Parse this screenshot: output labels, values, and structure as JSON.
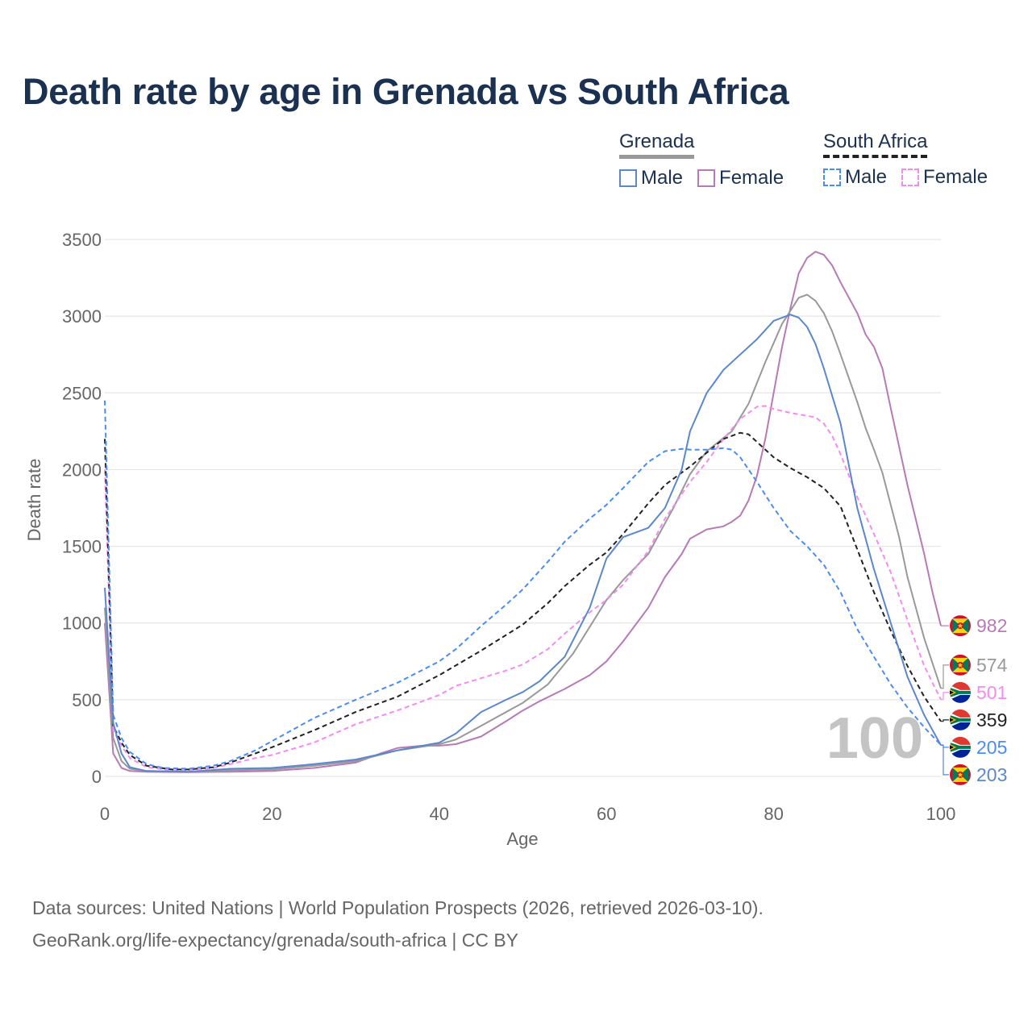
{
  "title": "Death rate by age in Grenada vs South Africa",
  "legend": {
    "groups": [
      {
        "name": "Grenada",
        "line_color": "#999999",
        "line_style": "solid",
        "items": [
          {
            "label": "Male",
            "color": "#5b87cc",
            "style": "solid"
          },
          {
            "label": "Female",
            "color": "#b77ab7",
            "style": "solid"
          }
        ]
      },
      {
        "name": "South Africa",
        "line_color": "#222222",
        "line_style": "dashed",
        "items": [
          {
            "label": "Male",
            "color": "#4a8cf5",
            "style": "dashed"
          },
          {
            "label": "Female",
            "color": "#f58af2",
            "style": "dashed"
          }
        ]
      }
    ]
  },
  "age_indicator": "100",
  "footer": {
    "line1": "Data sources: United Nations | World Population Prospects (2026, retrieved 2026-03-10).",
    "line2": "GeoRank.org/life-expectancy/grenada/south-africa | CC BY"
  },
  "chart_data": {
    "type": "line",
    "title": "Death rate by age in Grenada vs South Africa",
    "xlabel": "Age",
    "ylabel": "Death rate",
    "xlim": [
      0,
      100
    ],
    "ylim": [
      0,
      3500
    ],
    "xticks": [
      "0",
      "20",
      "40",
      "60",
      "80",
      "100"
    ],
    "yticks": [
      "0",
      "500",
      "1000",
      "1500",
      "2000",
      "2500",
      "3000",
      "3500"
    ],
    "grid": true,
    "series": [
      {
        "name": "Grenada Female",
        "country": "Grenada",
        "color": "#b77ab7",
        "dashed": false,
        "end_label": "982",
        "x": [
          0,
          1,
          2,
          3,
          5,
          10,
          15,
          20,
          25,
          30,
          33,
          35,
          38,
          40,
          42,
          45,
          48,
          50,
          52,
          55,
          58,
          60,
          62,
          65,
          67,
          69,
          70,
          72,
          74,
          75,
          76,
          77,
          78,
          79,
          80,
          81,
          82,
          83,
          84,
          85,
          86,
          87,
          88,
          90,
          91,
          92,
          93,
          94,
          96,
          98,
          99,
          100
        ],
        "y": [
          1000,
          150,
          55,
          35,
          30,
          28,
          30,
          35,
          55,
          90,
          150,
          185,
          200,
          200,
          210,
          260,
          360,
          430,
          490,
          570,
          660,
          750,
          880,
          1100,
          1300,
          1450,
          1550,
          1610,
          1630,
          1660,
          1700,
          1800,
          1960,
          2200,
          2500,
          2800,
          3050,
          3280,
          3380,
          3420,
          3400,
          3330,
          3220,
          3020,
          2880,
          2800,
          2660,
          2400,
          1900,
          1450,
          1200,
          982
        ]
      },
      {
        "name": "Grenada Total",
        "country": "Grenada",
        "color": "#999999",
        "dashed": false,
        "end_label": "574",
        "x": [
          0,
          1,
          2,
          3,
          5,
          10,
          15,
          20,
          25,
          30,
          35,
          40,
          42,
          45,
          50,
          53,
          56,
          60,
          62,
          65,
          68,
          70,
          72,
          75,
          77,
          79,
          81,
          83,
          84,
          85,
          86,
          87,
          88,
          90,
          91,
          92,
          93,
          95,
          96,
          98,
          100
        ],
        "y": [
          1100,
          250,
          100,
          50,
          35,
          30,
          40,
          45,
          70,
          100,
          170,
          210,
          240,
          330,
          480,
          600,
          800,
          1150,
          1280,
          1450,
          1750,
          1970,
          2120,
          2250,
          2430,
          2700,
          2950,
          3120,
          3140,
          3100,
          3020,
          2900,
          2750,
          2440,
          2270,
          2130,
          1980,
          1560,
          1300,
          900,
          574
        ]
      },
      {
        "name": "South Africa Female",
        "country": "South Africa",
        "color": "#f58af2",
        "dashed": true,
        "end_label": "501",
        "x": [
          0,
          1,
          2,
          3,
          5,
          8,
          10,
          13,
          15,
          18,
          20,
          25,
          30,
          35,
          40,
          42,
          45,
          48,
          50,
          53,
          55,
          58,
          60,
          62,
          65,
          67,
          70,
          72,
          74,
          76,
          78,
          79,
          80,
          82,
          84,
          85,
          86,
          87,
          88,
          90,
          92,
          94,
          96,
          98,
          100
        ],
        "y": [
          2000,
          300,
          200,
          120,
          60,
          40,
          40,
          55,
          80,
          120,
          140,
          220,
          340,
          430,
          530,
          590,
          640,
          690,
          730,
          830,
          930,
          1070,
          1150,
          1250,
          1470,
          1680,
          1920,
          2050,
          2200,
          2330,
          2410,
          2415,
          2395,
          2370,
          2350,
          2340,
          2300,
          2220,
          2100,
          1820,
          1580,
          1330,
          1020,
          720,
          501
        ]
      },
      {
        "name": "South Africa Total",
        "country": "South Africa",
        "color": "#222222",
        "dashed": true,
        "end_label": "359",
        "x": [
          0,
          1,
          2,
          3,
          5,
          8,
          10,
          13,
          15,
          18,
          20,
          25,
          30,
          35,
          40,
          45,
          50,
          53,
          55,
          58,
          60,
          62,
          65,
          67,
          70,
          72,
          74,
          76,
          77,
          78,
          80,
          82,
          84,
          86,
          88,
          90,
          92,
          94,
          96,
          98,
          100
        ],
        "y": [
          2200,
          330,
          220,
          140,
          70,
          45,
          45,
          60,
          90,
          150,
          190,
          300,
          420,
          520,
          660,
          820,
          990,
          1130,
          1240,
          1380,
          1460,
          1580,
          1780,
          1900,
          2020,
          2110,
          2200,
          2240,
          2230,
          2180,
          2080,
          2010,
          1950,
          1880,
          1760,
          1480,
          1200,
          950,
          720,
          520,
          359
        ]
      },
      {
        "name": "South Africa Male",
        "country": "South Africa",
        "color": "#4a8cf5",
        "dashed": true,
        "end_label": "205",
        "x": [
          0,
          1,
          2,
          3,
          5,
          7,
          10,
          13,
          15,
          18,
          20,
          25,
          30,
          35,
          40,
          42,
          45,
          48,
          50,
          53,
          55,
          58,
          60,
          62,
          65,
          67,
          69,
          70,
          72,
          74,
          75,
          76,
          78,
          80,
          82,
          84,
          86,
          88,
          90,
          92,
          94,
          96,
          98,
          100
        ],
        "y": [
          2450,
          400,
          250,
          160,
          80,
          55,
          50,
          70,
          100,
          170,
          230,
          380,
          500,
          610,
          750,
          830,
          980,
          1120,
          1220,
          1400,
          1530,
          1680,
          1770,
          1880,
          2050,
          2120,
          2135,
          2130,
          2130,
          2140,
          2130,
          2080,
          1920,
          1750,
          1600,
          1500,
          1380,
          1200,
          960,
          780,
          600,
          450,
          320,
          205
        ]
      },
      {
        "name": "Grenada Male",
        "country": "Grenada",
        "color": "#5b87cc",
        "dashed": false,
        "end_label": "203",
        "x": [
          0,
          1,
          2,
          3,
          5,
          10,
          15,
          20,
          25,
          30,
          35,
          40,
          42,
          45,
          48,
          50,
          52,
          55,
          58,
          60,
          62,
          65,
          67,
          69,
          70,
          72,
          74,
          76,
          78,
          80,
          82,
          83,
          84,
          85,
          86,
          88,
          90,
          92,
          94,
          96,
          98,
          100
        ],
        "y": [
          1230,
          350,
          150,
          60,
          35,
          30,
          50,
          55,
          80,
          110,
          170,
          220,
          280,
          420,
          500,
          550,
          620,
          780,
          1100,
          1420,
          1560,
          1620,
          1750,
          2000,
          2250,
          2500,
          2650,
          2750,
          2850,
          2970,
          3010,
          2990,
          2930,
          2820,
          2660,
          2300,
          1750,
          1350,
          1000,
          650,
          400,
          203
        ]
      }
    ]
  }
}
